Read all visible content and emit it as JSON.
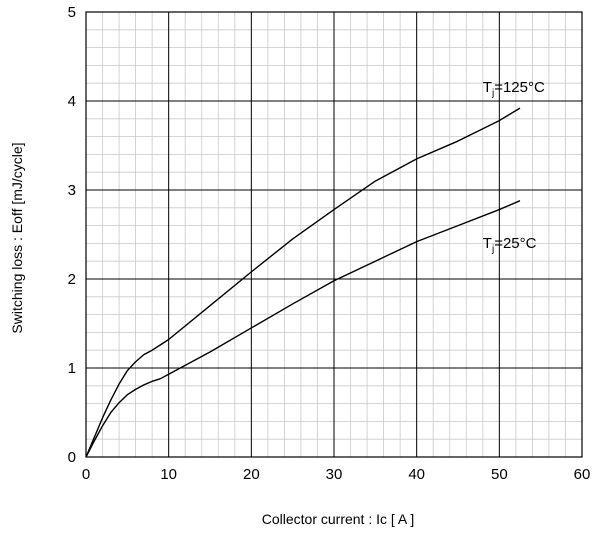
{
  "chart_data": {
    "type": "line",
    "xlabel": "Collector current  :  Ic [ A ]",
    "ylabel": "Switching loss  :  Eoff [mJ/cycle]",
    "xlim": [
      0,
      60
    ],
    "ylim": [
      0,
      5
    ],
    "x_ticks": [
      "0",
      "10",
      "20",
      "30",
      "40",
      "50",
      "60"
    ],
    "y_ticks": [
      "0",
      "1",
      "2",
      "3",
      "4",
      "5"
    ],
    "grid": true,
    "minor_grid": true,
    "series": [
      {
        "name": "Tj=125°C",
        "label_main": "T",
        "label_sub": "j",
        "label_rest": "=125°C",
        "color": "#000000",
        "x": [
          0,
          1,
          2,
          3,
          4,
          5,
          6,
          7,
          8,
          9,
          10,
          15,
          20,
          25,
          30,
          35,
          40,
          45,
          50,
          52.5
        ],
        "y": [
          0,
          0.22,
          0.44,
          0.64,
          0.82,
          0.97,
          1.07,
          1.15,
          1.2,
          1.26,
          1.32,
          1.7,
          2.08,
          2.45,
          2.78,
          3.1,
          3.35,
          3.55,
          3.78,
          3.92
        ]
      },
      {
        "name": "Tj=25°C",
        "label_main": "T",
        "label_sub": "j",
        "label_rest": "=25°C",
        "color": "#000000",
        "x": [
          0,
          1,
          2,
          3,
          4,
          5,
          6,
          7,
          8,
          9,
          10,
          15,
          20,
          25,
          30,
          35,
          40,
          45,
          50,
          52.5
        ],
        "y": [
          0,
          0.18,
          0.35,
          0.5,
          0.61,
          0.7,
          0.76,
          0.81,
          0.85,
          0.88,
          0.93,
          1.18,
          1.45,
          1.72,
          1.98,
          2.2,
          2.42,
          2.6,
          2.78,
          2.88
        ]
      }
    ]
  }
}
